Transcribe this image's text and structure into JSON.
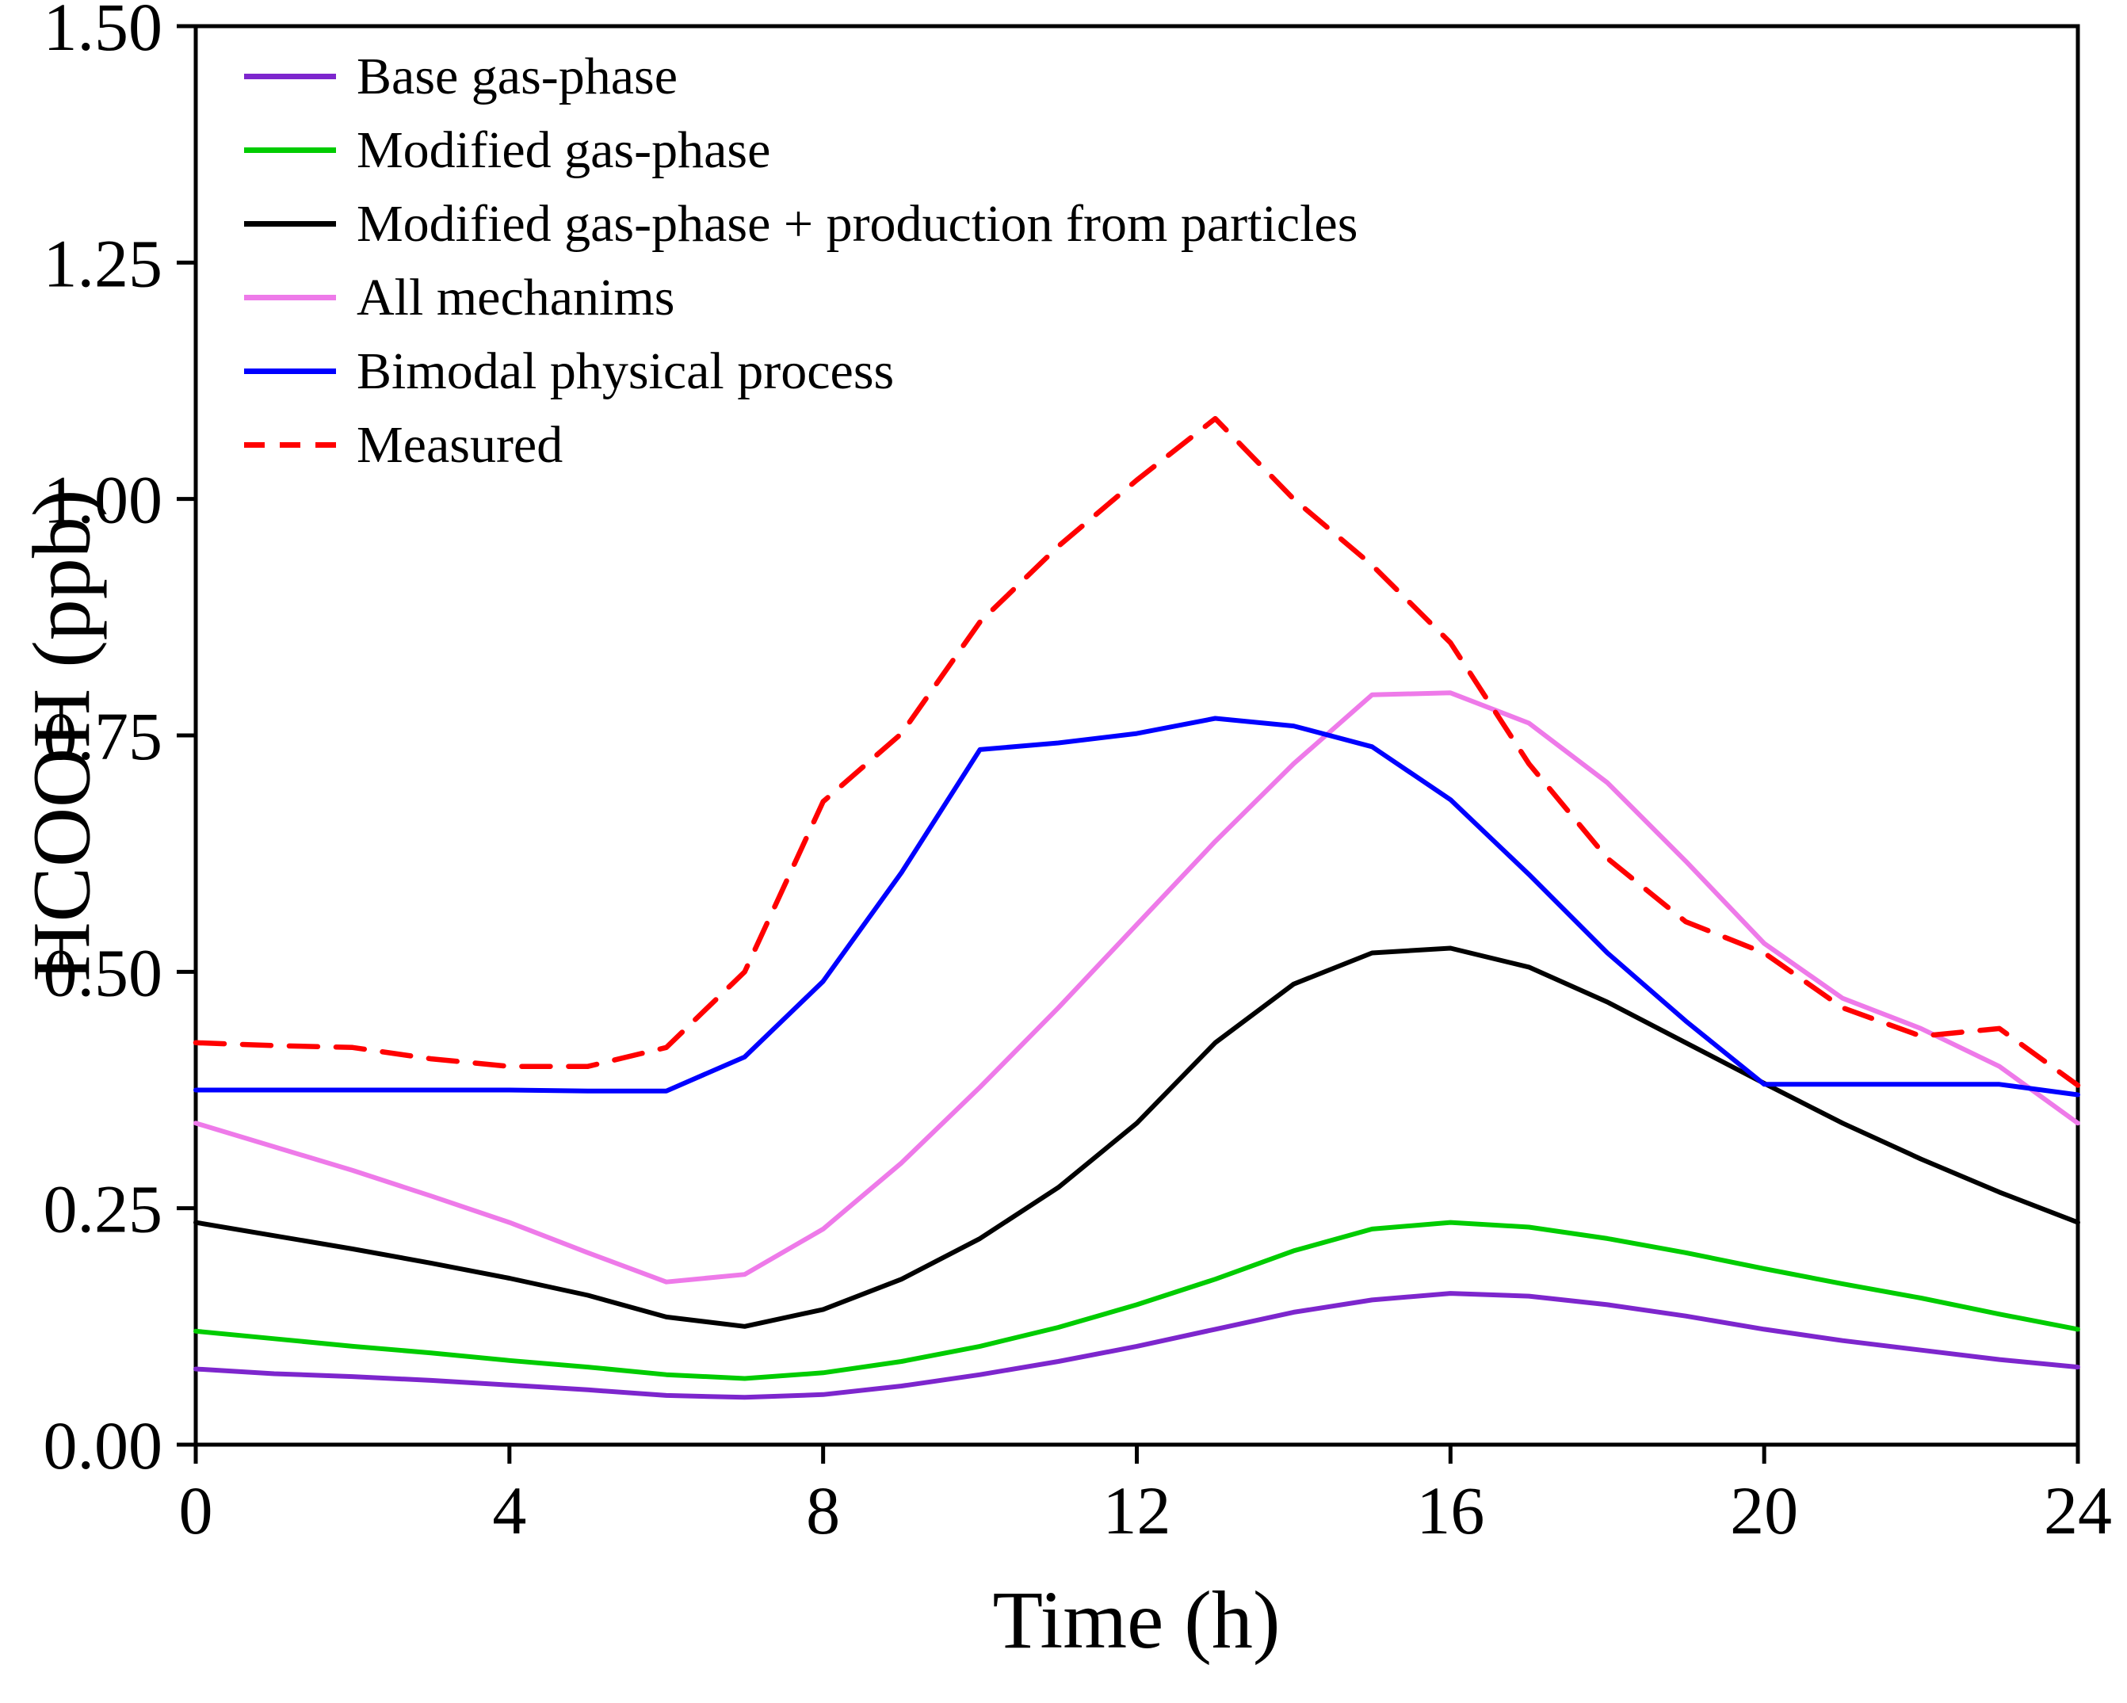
{
  "chart_data": {
    "type": "line",
    "title": "",
    "xlabel": "Time (h)",
    "ylabel": "HCOOH (ppb)",
    "xlim": [
      0,
      24
    ],
    "ylim": [
      0,
      1.5
    ],
    "grid": false,
    "legend_position": "top-left",
    "x_tick_values": [
      0,
      4,
      8,
      12,
      16,
      20,
      24
    ],
    "x_tick_labels": [
      "0",
      "4",
      "8",
      "12",
      "16",
      "20",
      "24"
    ],
    "y_tick_values": [
      0,
      0.25,
      0.5,
      0.75,
      1.0,
      1.25,
      1.5
    ],
    "y_tick_labels": [
      "0.00",
      "0.25",
      "0.50",
      "0.75",
      "1.00",
      "1.25",
      "1.50"
    ],
    "x": [
      0,
      1,
      2,
      3,
      4,
      5,
      6,
      7,
      8,
      9,
      10,
      11,
      12,
      13,
      14,
      15,
      16,
      17,
      18,
      19,
      20,
      21,
      22,
      23,
      24
    ],
    "series": [
      {
        "name": "Base gas-phase",
        "color": "#7D26CD",
        "style": "solid",
        "values": [
          0.08,
          0.075,
          0.072,
          0.068,
          0.063,
          0.058,
          0.052,
          0.05,
          0.053,
          0.062,
          0.074,
          0.088,
          0.104,
          0.122,
          0.14,
          0.153,
          0.16,
          0.157,
          0.148,
          0.136,
          0.122,
          0.11,
          0.1,
          0.09,
          0.082
        ]
      },
      {
        "name": "Modified gas-phase",
        "color": "#00CC00",
        "style": "solid",
        "values": [
          0.12,
          0.112,
          0.104,
          0.097,
          0.089,
          0.082,
          0.074,
          0.07,
          0.076,
          0.088,
          0.104,
          0.124,
          0.148,
          0.175,
          0.205,
          0.228,
          0.235,
          0.23,
          0.218,
          0.203,
          0.186,
          0.17,
          0.155,
          0.138,
          0.122
        ]
      },
      {
        "name": "Modified gas-phase + production from particles",
        "color": "#000000",
        "style": "solid",
        "values": [
          0.235,
          0.221,
          0.207,
          0.192,
          0.176,
          0.158,
          0.135,
          0.125,
          0.143,
          0.175,
          0.218,
          0.272,
          0.34,
          0.425,
          0.487,
          0.52,
          0.525,
          0.505,
          0.468,
          0.425,
          0.382,
          0.34,
          0.302,
          0.267,
          0.235
        ]
      },
      {
        "name": "All mechanims",
        "color": "#EE7AE9",
        "style": "solid",
        "values": [
          0.34,
          0.315,
          0.29,
          0.263,
          0.235,
          0.203,
          0.172,
          0.18,
          0.228,
          0.298,
          0.378,
          0.462,
          0.55,
          0.638,
          0.72,
          0.793,
          0.795,
          0.763,
          0.7,
          0.617,
          0.53,
          0.472,
          0.44,
          0.4,
          0.34
        ]
      },
      {
        "name": "Bimodal physical process",
        "color": "#0000FF",
        "style": "solid",
        "values": [
          0.375,
          0.375,
          0.375,
          0.375,
          0.375,
          0.374,
          0.374,
          0.41,
          0.49,
          0.605,
          0.735,
          0.742,
          0.752,
          0.768,
          0.76,
          0.738,
          0.682,
          0.603,
          0.52,
          0.448,
          0.381,
          0.381,
          0.381,
          0.381,
          0.37
        ]
      },
      {
        "name": "Measured",
        "color": "#FF0000",
        "style": "dashed",
        "values": [
          0.425,
          0.422,
          0.42,
          0.408,
          0.4,
          0.4,
          0.42,
          0.5,
          0.68,
          0.752,
          0.87,
          0.95,
          1.02,
          1.085,
          1.0,
          0.93,
          0.848,
          0.72,
          0.62,
          0.553,
          0.52,
          0.462,
          0.432,
          0.44,
          0.38
        ]
      }
    ]
  }
}
